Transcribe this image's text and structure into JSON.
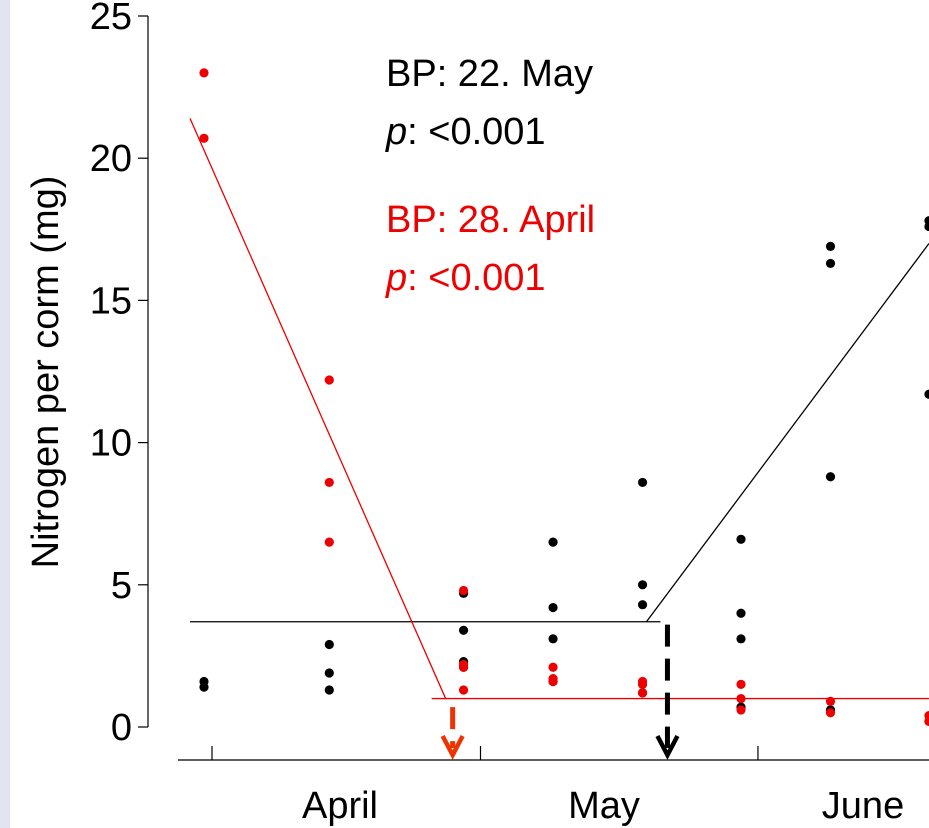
{
  "chart_data": {
    "type": "scatter",
    "title": "",
    "xlabel": "",
    "ylabel": "Nitrogen per corm (mg)",
    "ylim": [
      0,
      25
    ],
    "yticks": [
      0,
      5,
      10,
      15,
      20,
      25
    ],
    "x_month_labels": [
      "April",
      "May",
      "June"
    ],
    "grid": false,
    "colors": {
      "series_black": "#000000",
      "series_red": "#ee0000",
      "arrow_red": "#ee3300"
    },
    "series": [
      {
        "color": "#000000",
        "points": [
          {
            "x": "April 1",
            "y": [
              1.4,
              1.6
            ]
          },
          {
            "x": "April 15",
            "y": [
              1.3,
              1.9,
              2.9
            ]
          },
          {
            "x": "April 30",
            "y": [
              2.1,
              2.3,
              3.4,
              4.7
            ]
          },
          {
            "x": "May 10",
            "y": [
              1.6,
              3.1,
              4.2,
              6.5
            ]
          },
          {
            "x": "May 20",
            "y": [
              1.2,
              4.3,
              5.0,
              8.6
            ]
          },
          {
            "x": "May 31",
            "y": [
              0.7,
              3.1,
              4.0,
              6.6
            ]
          },
          {
            "x": "June 10",
            "y": [
              0.6,
              8.8,
              16.3,
              16.9
            ]
          },
          {
            "x": "June 21",
            "y": [
              0.2,
              11.7,
              17.6,
              17.8
            ]
          }
        ],
        "breakpoint_fit": {
          "breakpoint": "May 22",
          "segments": [
            {
              "from": {
                "x": "April 1",
                "y": 3.7
              },
              "to": {
                "x": "May 22",
                "y": 3.7
              }
            },
            {
              "from": {
                "x": "May 22",
                "y": 3.7
              },
              "to": {
                "x": "June 21",
                "y": 17.0
              }
            }
          ]
        },
        "annotation": {
          "bp": "BP: 22. May",
          "p_label": "p",
          "p_value": ": <0.001"
        }
      },
      {
        "color": "#ee0000",
        "points": [
          {
            "x": "April 1",
            "y": [
              20.7,
              23.0
            ]
          },
          {
            "x": "April 15",
            "y": [
              6.5,
              8.6,
              12.2
            ]
          },
          {
            "x": "April 30",
            "y": [
              1.3,
              2.1,
              2.2,
              4.8
            ]
          },
          {
            "x": "May 10",
            "y": [
              1.6,
              1.7,
              2.1
            ]
          },
          {
            "x": "May 20",
            "y": [
              1.2,
              1.5,
              1.6
            ]
          },
          {
            "x": "May 31",
            "y": [
              0.6,
              1.0,
              1.5
            ]
          },
          {
            "x": "June 10",
            "y": [
              0.5,
              0.9
            ]
          },
          {
            "x": "June 21",
            "y": [
              0.2,
              0.4
            ]
          }
        ],
        "breakpoint_fit": {
          "breakpoint": "April 28",
          "segments": [
            {
              "from": {
                "x": "April 1",
                "y": 21.4
              },
              "to": {
                "x": "April 28",
                "y": 1.0
              }
            },
            {
              "from": {
                "x": "April 28",
                "y": 1.0
              },
              "to": {
                "x": "June 21",
                "y": 1.0
              }
            }
          ]
        },
        "annotation": {
          "bp": "BP: 28. April",
          "p_label": "p",
          "p_value": ": <0.001"
        }
      }
    ]
  }
}
